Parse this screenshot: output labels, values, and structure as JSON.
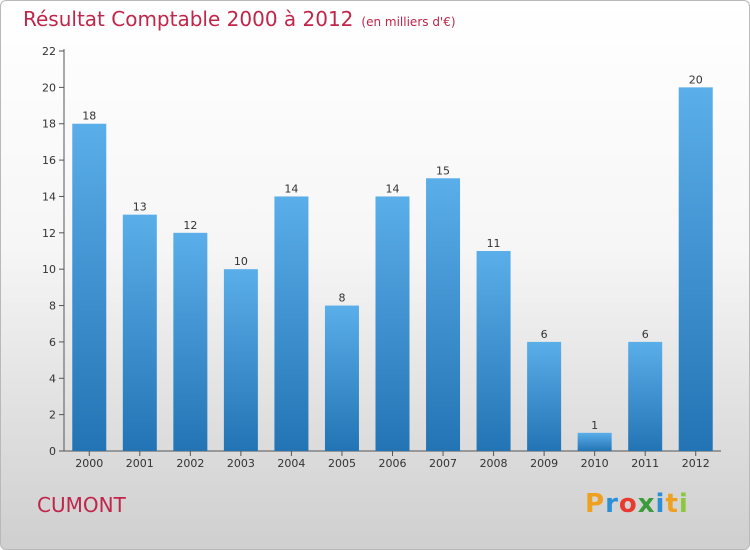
{
  "title": "Résultat Comptable 2000 à 2012",
  "unit": "(en milliers d'€)",
  "place": "CUMONT",
  "logo": {
    "letters": [
      "P",
      "r",
      "o",
      "x",
      "i",
      "t",
      "i"
    ],
    "colors": [
      "#f0a020",
      "#2b8fd6",
      "#e83a2f",
      "#3a9c3a",
      "#2b8fd6",
      "#f0a020",
      "#8dc63f"
    ]
  },
  "colors": {
    "bar_light": "#5aaee9",
    "bar_dark": "#2374b4",
    "title": "#c0254a"
  },
  "chart_data": {
    "type": "bar",
    "categories": [
      "2000",
      "2001",
      "2002",
      "2003",
      "2004",
      "2005",
      "2006",
      "2007",
      "2008",
      "2009",
      "2010",
      "2011",
      "2012"
    ],
    "values": [
      18,
      13,
      12,
      10,
      14,
      8,
      14,
      15,
      11,
      6,
      1,
      6,
      20
    ],
    "ylim": [
      0,
      22
    ],
    "yticks": [
      0,
      2,
      4,
      6,
      8,
      10,
      12,
      14,
      16,
      18,
      20,
      22
    ],
    "grid": false,
    "xlabel": "",
    "ylabel": ""
  }
}
